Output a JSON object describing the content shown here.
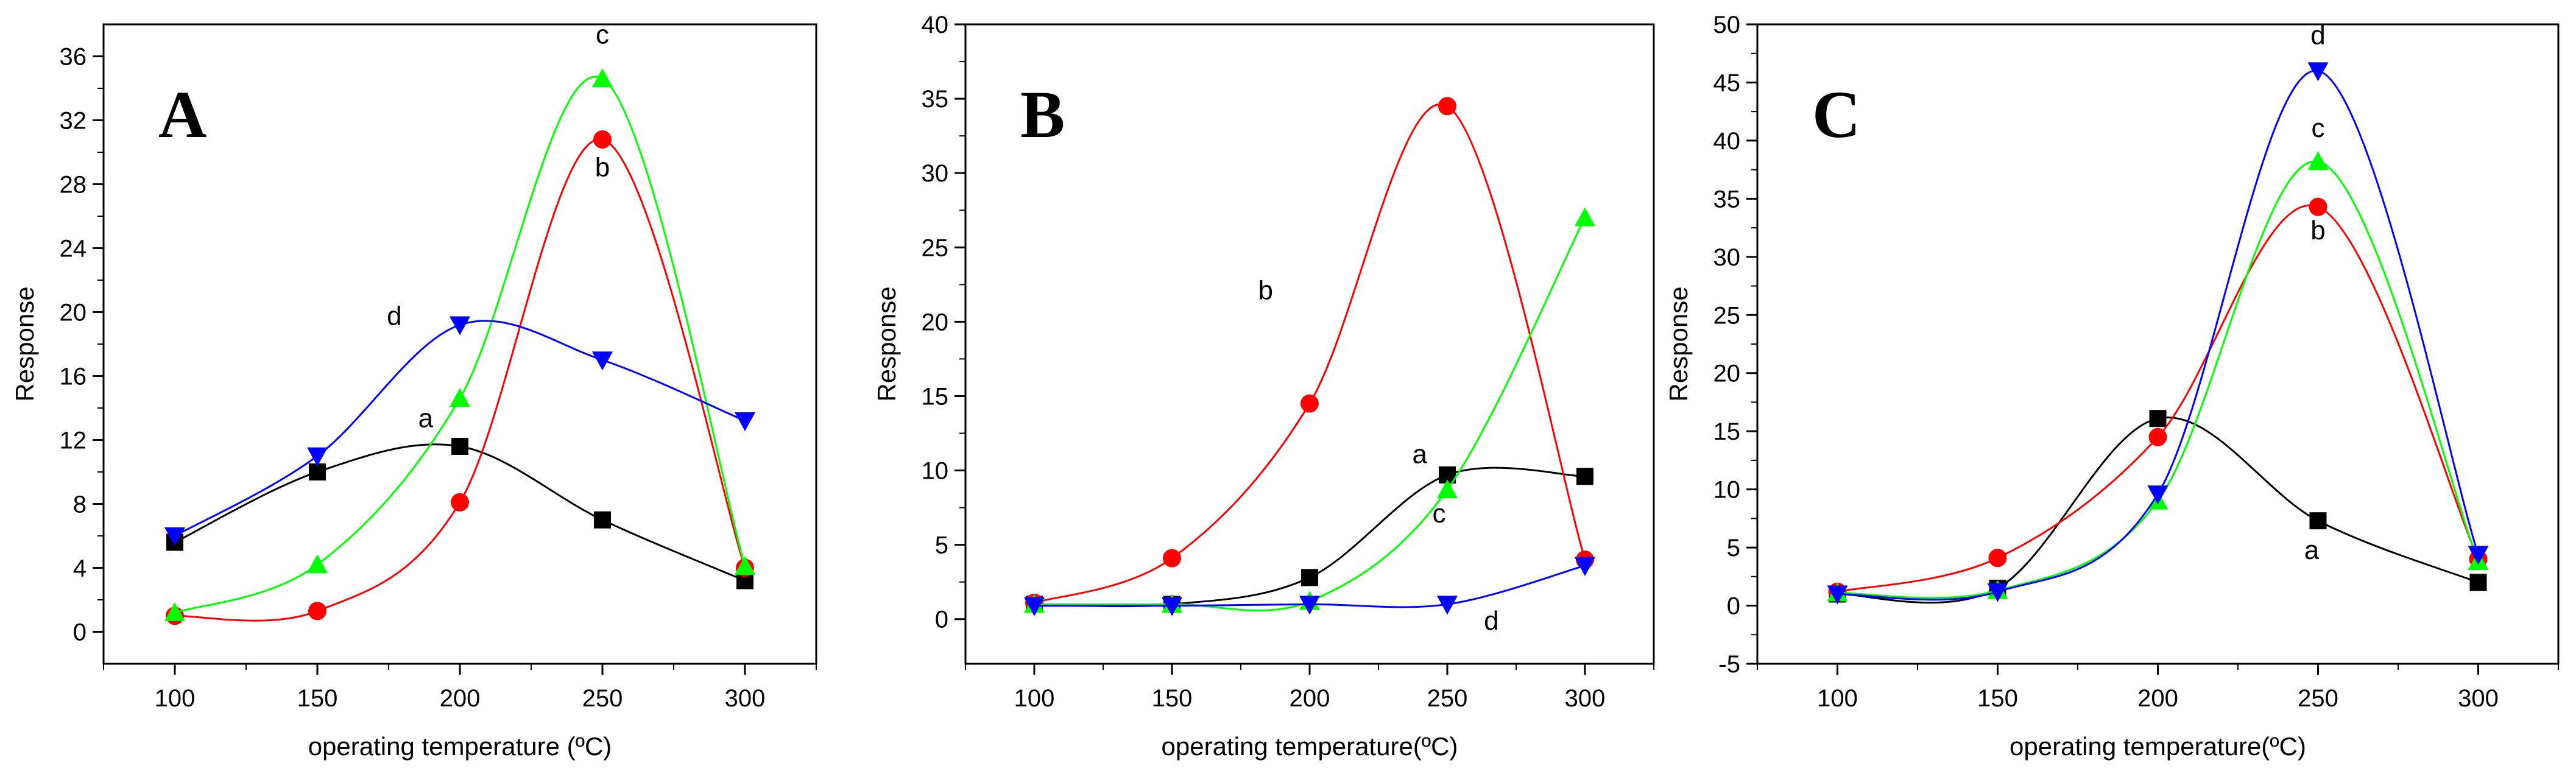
{
  "chart_data": [
    {
      "type": "line",
      "panel_label": "A",
      "xlabel": "operating temperature (ºC)",
      "ylabel": "Response",
      "xlim": [
        75,
        325
      ],
      "ylim": [
        -2,
        38
      ],
      "xticks": [
        100,
        150,
        200,
        250,
        300
      ],
      "yticks": [
        0,
        4,
        8,
        12,
        16,
        20,
        24,
        28,
        32,
        36
      ],
      "x": [
        100,
        150,
        200,
        250,
        300
      ],
      "series": [
        {
          "name": "a",
          "color": "#000000",
          "marker": "square",
          "values": [
            5.6,
            10.0,
            11.6,
            7.0,
            3.2
          ],
          "label_pos": [
            188,
            12.8
          ]
        },
        {
          "name": "b",
          "color": "#ff0000",
          "marker": "circle",
          "values": [
            1.0,
            1.3,
            8.1,
            30.8,
            4.0
          ],
          "label_pos": [
            250,
            28.5
          ]
        },
        {
          "name": "c",
          "color": "#00ff00",
          "marker": "triangle-up",
          "values": [
            1.2,
            4.2,
            14.6,
            34.6,
            4.1
          ],
          "label_pos": [
            250,
            36.8
          ]
        },
        {
          "name": "d",
          "color": "#0000ff",
          "marker": "triangle-down",
          "values": [
            6.0,
            11.0,
            19.2,
            17.0,
            13.2
          ],
          "label_pos": [
            177,
            19.2
          ]
        }
      ]
    },
    {
      "type": "line",
      "panel_label": "B",
      "xlabel": "operating temperature(ºC)",
      "ylabel": "Response",
      "xlim": [
        75,
        325
      ],
      "ylim": [
        -3,
        40
      ],
      "xticks": [
        100,
        150,
        200,
        250,
        300
      ],
      "yticks": [
        0,
        5,
        10,
        15,
        20,
        25,
        30,
        35,
        40
      ],
      "x": [
        100,
        150,
        200,
        250,
        300
      ],
      "series": [
        {
          "name": "a",
          "color": "#000000",
          "marker": "square",
          "values": [
            1.0,
            1.0,
            2.8,
            9.7,
            9.6
          ],
          "label_pos": [
            240,
            10.5
          ]
        },
        {
          "name": "b",
          "color": "#ff0000",
          "marker": "circle",
          "values": [
            1.1,
            4.1,
            14.5,
            34.5,
            4.0
          ],
          "label_pos": [
            184,
            21.5
          ]
        },
        {
          "name": "c",
          "color": "#00ff00",
          "marker": "triangle-up",
          "values": [
            1.0,
            1.0,
            1.2,
            8.7,
            27.0
          ],
          "label_pos": [
            247,
            6.5
          ]
        },
        {
          "name": "d",
          "color": "#0000ff",
          "marker": "triangle-down",
          "values": [
            0.9,
            0.9,
            1.0,
            1.0,
            3.6
          ],
          "label_pos": [
            266,
            -0.7
          ]
        }
      ]
    },
    {
      "type": "line",
      "panel_label": "C",
      "xlabel": "operating temperature(ºC)",
      "ylabel": "Response",
      "xlim": [
        75,
        325
      ],
      "ylim": [
        -5,
        50
      ],
      "xticks": [
        100,
        150,
        200,
        250,
        300
      ],
      "yticks": [
        -5,
        0,
        5,
        10,
        15,
        20,
        25,
        30,
        35,
        40,
        45,
        50
      ],
      "x": [
        100,
        150,
        200,
        250,
        300
      ],
      "series": [
        {
          "name": "a",
          "color": "#000000",
          "marker": "square",
          "values": [
            1.0,
            1.5,
            16.1,
            7.3,
            2.0
          ],
          "label_pos": [
            248,
            4.0
          ]
        },
        {
          "name": "b",
          "color": "#ff0000",
          "marker": "circle",
          "values": [
            1.2,
            4.1,
            14.5,
            34.3,
            4.0
          ],
          "label_pos": [
            250,
            31.5
          ]
        },
        {
          "name": "c",
          "color": "#00ff00",
          "marker": "triangle-up",
          "values": [
            1.1,
            1.3,
            9.0,
            38.2,
            3.8
          ],
          "label_pos": [
            250,
            40.3
          ]
        },
        {
          "name": "d",
          "color": "#0000ff",
          "marker": "triangle-down",
          "values": [
            1.0,
            1.2,
            9.6,
            46.0,
            4.4
          ],
          "label_pos": [
            250,
            48.3
          ]
        }
      ]
    }
  ]
}
